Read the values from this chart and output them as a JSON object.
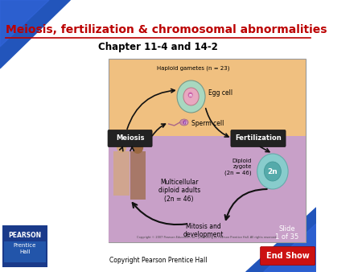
{
  "title": "Meiosis, fertilization & chromosomal abnormalities",
  "subtitle": "Chapter 11-4 and 14-2",
  "copyright": "Copyright Pearson Prentice Hall",
  "slide_line1": "Slide",
  "slide_line2": "1 of 35",
  "end_show": "End Show",
  "bg_color": "#ffffff",
  "title_color": "#bb0000",
  "corner_dark": "#1a3a8a",
  "corner_mid": "#2255bb",
  "corner_light": "#3366dd",
  "pearson_bg": "#1a3a8a",
  "pearson_text": "PEARSON",
  "prentice_text": "Prentice\nHall",
  "slide_bg": "#2255bb",
  "end_show_bg": "#cc1111",
  "diagram_peach": "#f0c080",
  "diagram_purple": "#c8a0c8",
  "diagram_border": "#999999",
  "haploid_text": "Haploid gametes (n = 23)",
  "egg_text": "Egg cell",
  "sperm_text": "Sperm cell",
  "meiosis_text": "Meiosis",
  "fertilization_text": "Fertilization",
  "diploid_text": "Diploid\nzygote\n(2n = 46)",
  "zygote_label": "2n",
  "multicell_text": "Multicellular\ndiploid adults\n(2n = 46)",
  "mitosis_text": "Mitosis and\ndevelopment",
  "egg_outer": "#a8d8c0",
  "egg_inner": "#e8a8c0",
  "egg_dot": "#cc66aa",
  "sperm_color": "#cc88aa",
  "zygote_outer": "#88cccc",
  "zygote_inner": "#55aaaa",
  "label_box_color": "#222222",
  "label_box_text": "#ffffff",
  "arrow_color": "#111111"
}
